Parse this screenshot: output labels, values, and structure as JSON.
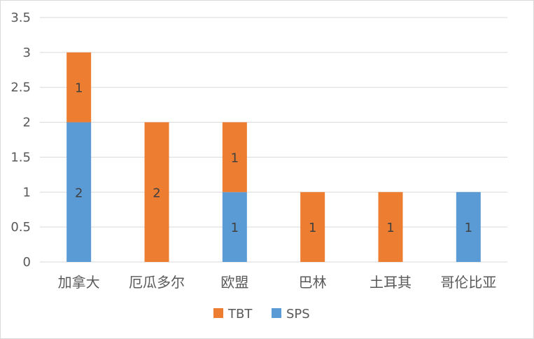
{
  "chart_data": {
    "type": "bar",
    "stacked": true,
    "categories": [
      "加拿大",
      "厄瓜多尔",
      "欧盟",
      "巴林",
      "土耳其",
      "哥伦比亚"
    ],
    "series": [
      {
        "name": "SPS",
        "color": "#5b9bd5",
        "values": [
          2,
          0,
          1,
          0,
          0,
          1
        ]
      },
      {
        "name": "TBT",
        "color": "#ed7d31",
        "values": [
          1,
          2,
          1,
          1,
          1,
          0
        ]
      }
    ],
    "ylim": [
      0,
      3.5
    ],
    "yticks": [
      "0",
      "0.5",
      "1",
      "1.5",
      "2",
      "2.5",
      "3",
      "3.5"
    ],
    "grid": true,
    "legend": {
      "position": "bottom",
      "order": [
        "TBT",
        "SPS"
      ]
    },
    "data_labels": true,
    "gridline_color": "#d9d9d9"
  }
}
